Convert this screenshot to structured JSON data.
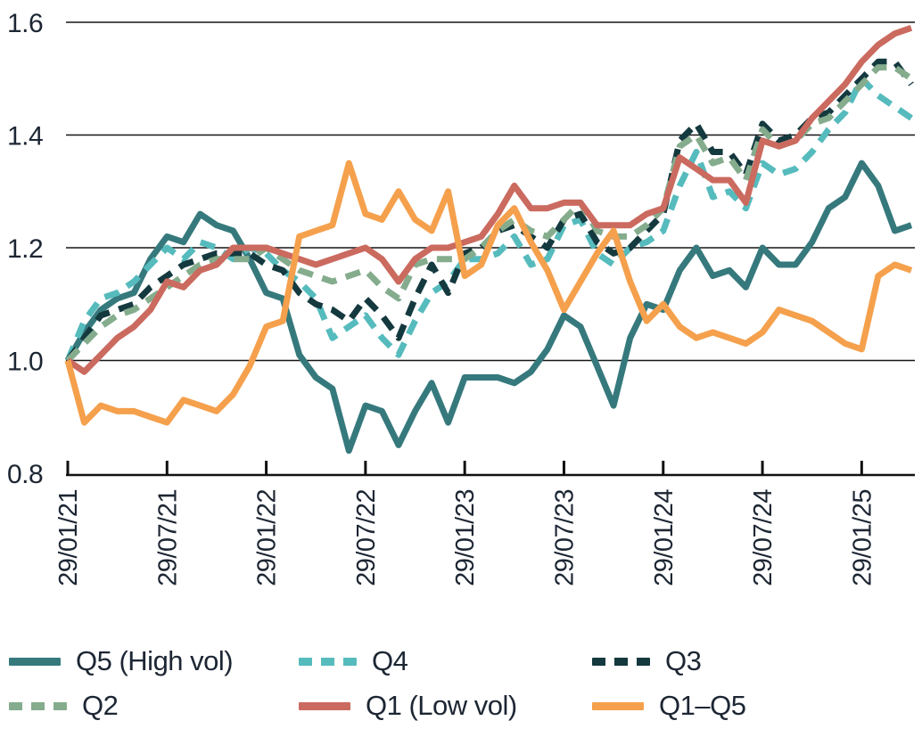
{
  "chart_data": {
    "type": "line",
    "title": "",
    "xlabel": "",
    "ylabel": "",
    "ylim": [
      0.8,
      1.6
    ],
    "y_ticks": [
      "0.8",
      "1.0",
      "1.2",
      "1.4",
      "1.6"
    ],
    "grid_values": [
      1.0,
      1.2,
      1.4,
      1.6
    ],
    "grid": "horizontal-only",
    "x_frequency": "monthly",
    "n_points": 52,
    "x_tick_labels": [
      "29/01/21",
      "29/07/21",
      "29/01/22",
      "29/07/22",
      "29/01/23",
      "29/07/23",
      "29/01/24",
      "29/07/24",
      "29/01/25"
    ],
    "x_tick_indices": [
      0,
      6,
      12,
      18,
      24,
      30,
      36,
      42,
      48
    ],
    "legend_position": "bottom",
    "series": [
      {
        "name": "Q5 (High vol)",
        "color": "#36797d",
        "dashed": false,
        "values": [
          1.0,
          1.05,
          1.09,
          1.11,
          1.12,
          1.18,
          1.22,
          1.21,
          1.26,
          1.24,
          1.23,
          1.18,
          1.12,
          1.11,
          1.01,
          0.97,
          0.95,
          0.84,
          0.92,
          0.91,
          0.85,
          0.91,
          0.96,
          0.89,
          0.97,
          0.97,
          0.97,
          0.96,
          0.98,
          1.02,
          1.08,
          1.06,
          0.99,
          0.92,
          1.04,
          1.1,
          1.09,
          1.16,
          1.2,
          1.15,
          1.16,
          1.13,
          1.2,
          1.17,
          1.17,
          1.21,
          1.27,
          1.29,
          1.35,
          1.31,
          1.23,
          1.24
        ]
      },
      {
        "name": "Q4",
        "color": "#56bbbd",
        "dashed": true,
        "values": [
          1.0,
          1.07,
          1.11,
          1.12,
          1.14,
          1.17,
          1.2,
          1.18,
          1.21,
          1.2,
          1.18,
          1.2,
          1.19,
          1.16,
          1.14,
          1.11,
          1.04,
          1.06,
          1.08,
          1.04,
          1.01,
          1.07,
          1.12,
          1.14,
          1.18,
          1.18,
          1.19,
          1.22,
          1.17,
          1.18,
          1.24,
          1.25,
          1.19,
          1.17,
          1.2,
          1.21,
          1.23,
          1.31,
          1.37,
          1.29,
          1.3,
          1.27,
          1.35,
          1.33,
          1.34,
          1.37,
          1.41,
          1.44,
          1.5,
          1.47,
          1.45,
          1.43
        ]
      },
      {
        "name": "Q3",
        "color": "#14393e",
        "dashed": true,
        "values": [
          1.0,
          1.04,
          1.08,
          1.09,
          1.1,
          1.13,
          1.15,
          1.17,
          1.18,
          1.19,
          1.19,
          1.19,
          1.17,
          1.16,
          1.12,
          1.1,
          1.09,
          1.07,
          1.11,
          1.08,
          1.04,
          1.11,
          1.17,
          1.12,
          1.19,
          1.2,
          1.23,
          1.24,
          1.22,
          1.2,
          1.25,
          1.26,
          1.21,
          1.19,
          1.2,
          1.23,
          1.26,
          1.39,
          1.42,
          1.37,
          1.37,
          1.33,
          1.42,
          1.39,
          1.4,
          1.43,
          1.44,
          1.47,
          1.5,
          1.53,
          1.53,
          1.49
        ]
      },
      {
        "name": "Q2",
        "color": "#84ac8d",
        "dashed": true,
        "values": [
          1.0,
          1.03,
          1.06,
          1.08,
          1.09,
          1.11,
          1.13,
          1.15,
          1.17,
          1.18,
          1.18,
          1.18,
          1.2,
          1.18,
          1.16,
          1.15,
          1.14,
          1.15,
          1.16,
          1.13,
          1.11,
          1.17,
          1.18,
          1.18,
          1.18,
          1.2,
          1.23,
          1.25,
          1.23,
          1.22,
          1.25,
          1.28,
          1.23,
          1.22,
          1.22,
          1.24,
          1.27,
          1.38,
          1.4,
          1.35,
          1.36,
          1.32,
          1.41,
          1.38,
          1.39,
          1.42,
          1.43,
          1.46,
          1.49,
          1.52,
          1.52,
          1.5
        ]
      },
      {
        "name": "Q1 (Low vol)",
        "color": "#cb6a5f",
        "dashed": false,
        "values": [
          1.0,
          0.98,
          1.01,
          1.04,
          1.06,
          1.09,
          1.14,
          1.13,
          1.16,
          1.17,
          1.2,
          1.2,
          1.2,
          1.19,
          1.18,
          1.17,
          1.18,
          1.19,
          1.2,
          1.18,
          1.14,
          1.18,
          1.2,
          1.2,
          1.21,
          1.22,
          1.26,
          1.31,
          1.27,
          1.27,
          1.28,
          1.28,
          1.24,
          1.24,
          1.24,
          1.26,
          1.27,
          1.36,
          1.34,
          1.32,
          1.32,
          1.28,
          1.39,
          1.38,
          1.39,
          1.43,
          1.46,
          1.49,
          1.53,
          1.56,
          1.58,
          1.59
        ]
      },
      {
        "name": "Q1–Q5",
        "color": "#f5a04c",
        "dashed": false,
        "values": [
          1.0,
          0.89,
          0.92,
          0.91,
          0.91,
          0.9,
          0.89,
          0.93,
          0.92,
          0.91,
          0.94,
          0.99,
          1.06,
          1.07,
          1.22,
          1.23,
          1.24,
          1.35,
          1.26,
          1.25,
          1.3,
          1.25,
          1.23,
          1.3,
          1.15,
          1.17,
          1.24,
          1.27,
          1.21,
          1.16,
          1.09,
          1.14,
          1.19,
          1.23,
          1.14,
          1.07,
          1.1,
          1.06,
          1.04,
          1.05,
          1.04,
          1.03,
          1.05,
          1.09,
          1.08,
          1.07,
          1.05,
          1.03,
          1.02,
          1.15,
          1.17,
          1.16
        ]
      }
    ]
  },
  "legend": {
    "items": [
      "Q5 (High vol)",
      "Q4",
      "Q3",
      "Q2",
      "Q1 (Low vol)",
      "Q1–Q5"
    ]
  },
  "colors": {
    "text": "#1d2633",
    "axis": "#111111",
    "background": "#ffffff"
  }
}
